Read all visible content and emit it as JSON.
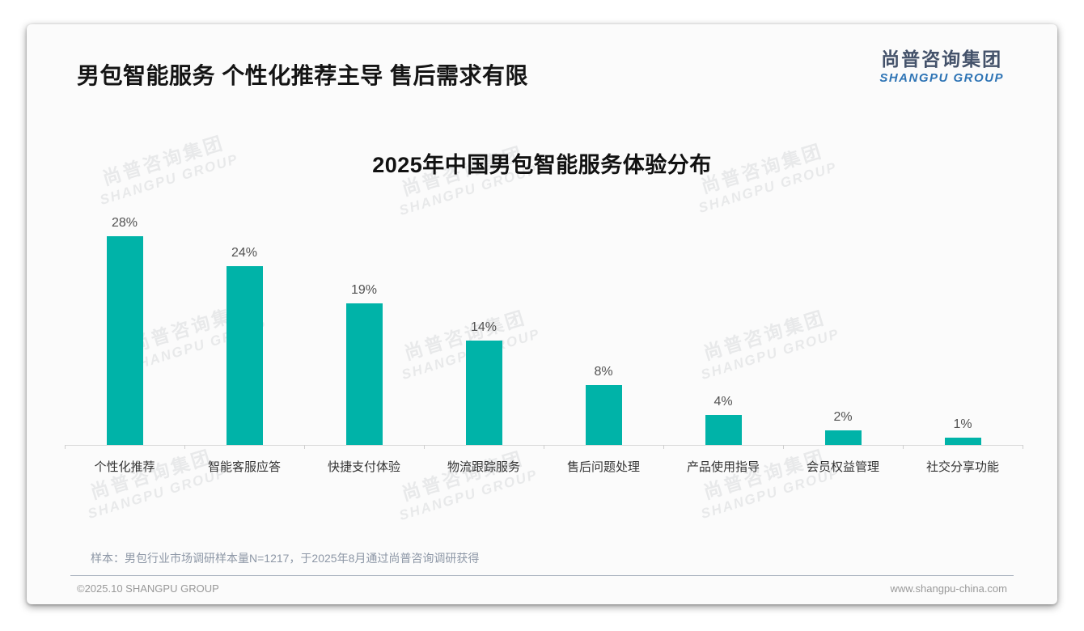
{
  "page": {
    "header": {
      "title": "男包智能服务 个性化推荐主导 售后需求有限"
    },
    "logo": {
      "cn": "尚普咨询集团",
      "en": "SHANGPU GROUP"
    },
    "watermark": {
      "cn": "尚普咨询集团",
      "en": "SHANGPU GROUP"
    },
    "note": "样本：男包行业市场调研样本量N=1217，于2025年8月通过尚普咨询调研获得",
    "footer": {
      "copyright": "©2025.10 SHANGPU GROUP",
      "website": "www.shangpu-china.com"
    }
  },
  "chart_data": {
    "type": "bar",
    "title": "2025年中国男包智能服务体验分布",
    "categories": [
      "个性化推荐",
      "智能客服应答",
      "快捷支付体验",
      "物流跟踪服务",
      "售后问题处理",
      "产品使用指导",
      "会员权益管理",
      "社交分享功能"
    ],
    "values": [
      28,
      24,
      19,
      14,
      8,
      4,
      2,
      1
    ],
    "value_labels": [
      "28%",
      "24%",
      "19%",
      "14%",
      "8%",
      "4%",
      "2%",
      "1%"
    ],
    "unit": "%",
    "bar_color": "#00b3a8",
    "value_label_position": "above-bars",
    "xlabel": "",
    "ylabel": "",
    "ylim": [
      0,
      30
    ],
    "grid": false,
    "legend": "none"
  }
}
